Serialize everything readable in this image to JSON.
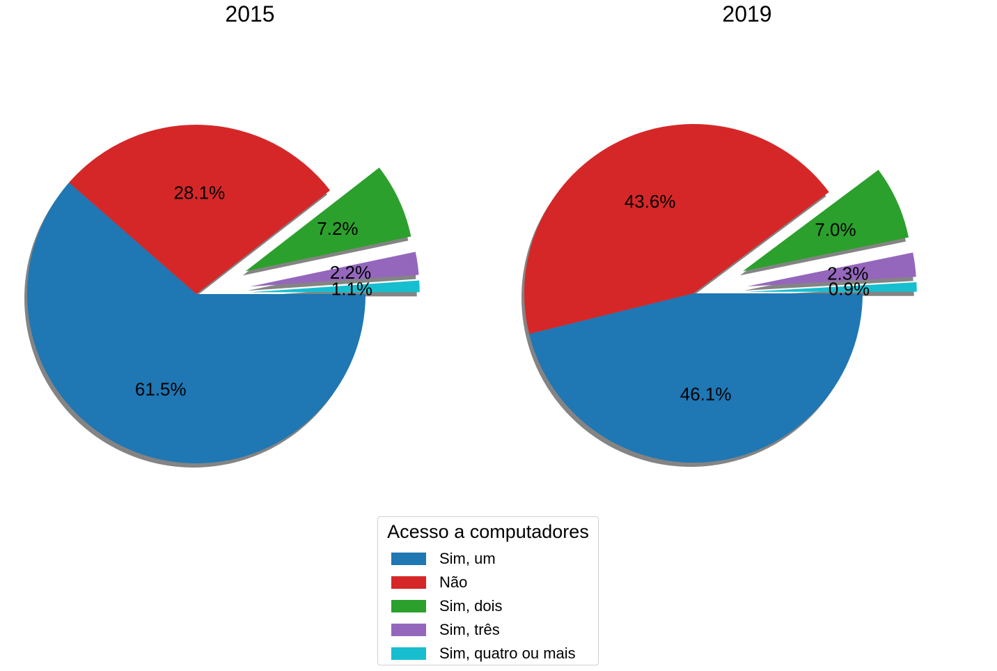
{
  "legend": {
    "title": "Acesso a computadores",
    "items": [
      {
        "label": "Sim, um",
        "color": "#1f77b4"
      },
      {
        "label": "Não",
        "color": "#d62728"
      },
      {
        "label": "Sim, dois",
        "color": "#2ca02c"
      },
      {
        "label": "Sim, três",
        "color": "#9467bd"
      },
      {
        "label": "Sim, quatro ou mais",
        "color": "#17becf"
      }
    ]
  },
  "chart_data": [
    {
      "type": "pie",
      "title": "2015",
      "categories": [
        "Sim, um",
        "Não",
        "Sim, dois",
        "Sim, três",
        "Sim, quatro ou mais"
      ],
      "values": [
        61.5,
        28.1,
        7.2,
        2.2,
        1.1
      ],
      "labels": [
        "61.5%",
        "28.1%",
        "7.2%",
        "2.2%",
        "1.1%"
      ],
      "exploded": [
        false,
        false,
        true,
        true,
        true
      ],
      "shadow": true
    },
    {
      "type": "pie",
      "title": "2019",
      "categories": [
        "Sim, um",
        "Não",
        "Sim, dois",
        "Sim, três",
        "Sim, quatro ou mais"
      ],
      "values": [
        46.1,
        43.6,
        7.0,
        2.3,
        0.9
      ],
      "labels": [
        "46.1%",
        "43.6%",
        "7.0%",
        "2.3%",
        "0.9%"
      ],
      "exploded": [
        false,
        false,
        true,
        true,
        true
      ],
      "shadow": true
    }
  ]
}
